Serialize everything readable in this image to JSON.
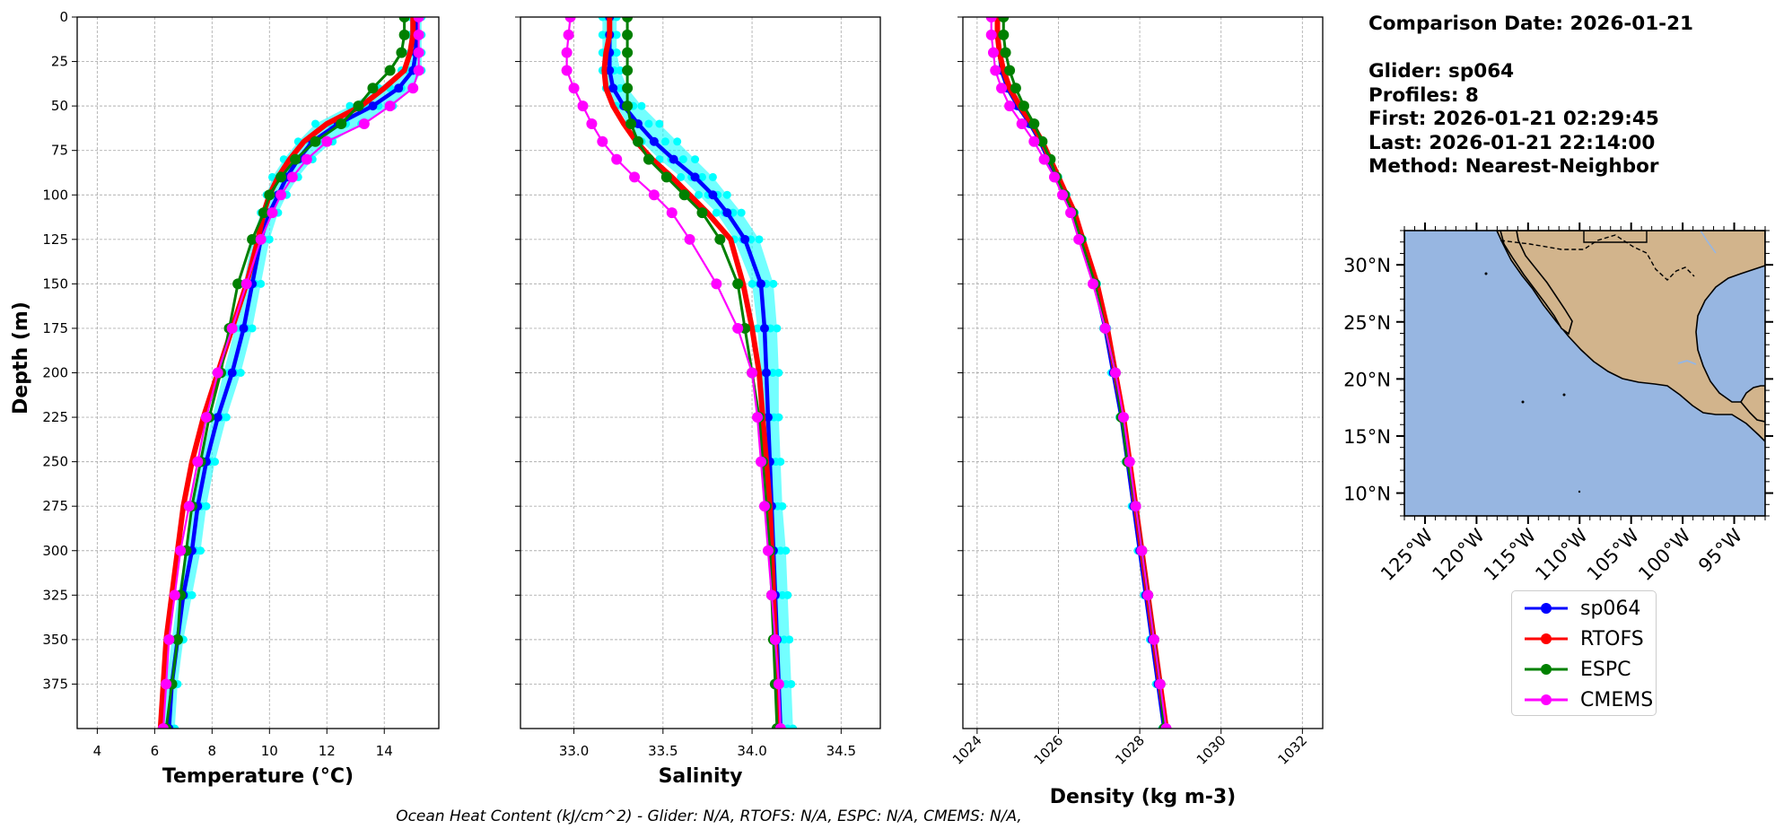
{
  "info": {
    "comparison_date": "Comparison Date: 2026-01-21",
    "glider": "Glider: sp064",
    "profiles": "Profiles: 8",
    "first": "First: 2026-01-21 02:29:45",
    "last": "Last: 2026-01-21 22:14:00",
    "method": "Method: Nearest-Neighbor"
  },
  "footer": "Ocean Heat Content (kJ/cm^2) - Glider: N/A,  RTOFS: N/A,  ESPC: N/A,  CMEMS: N/A,",
  "colors": {
    "glider": "#0000ff",
    "glider_spread": "#00ffff",
    "rtofs": "#ff0000",
    "espc": "#008000",
    "cmems": "#ff00ff",
    "ocean": "#97b6e1",
    "land": "#d2b48c"
  },
  "legend": [
    {
      "label": "sp064",
      "color": "#0000ff"
    },
    {
      "label": "RTOFS",
      "color": "#ff0000"
    },
    {
      "label": "ESPC",
      "color": "#008000"
    },
    {
      "label": "CMEMS",
      "color": "#ff00ff"
    }
  ],
  "chart_data": [
    {
      "type": "line",
      "xlabel": "Temperature (°C)",
      "ylabel": "Depth (m)",
      "xlim": [
        3.3,
        15.9
      ],
      "ylim": [
        400,
        0
      ],
      "xticks": [
        4,
        6,
        8,
        10,
        12,
        14
      ],
      "yticks": [
        0,
        25,
        50,
        75,
        100,
        125,
        150,
        175,
        200,
        225,
        250,
        275,
        300,
        325,
        350,
        375
      ],
      "grid": true,
      "depth": [
        0,
        10,
        20,
        30,
        40,
        50,
        60,
        70,
        80,
        90,
        100,
        110,
        125,
        150,
        175,
        200,
        225,
        250,
        275,
        300,
        325,
        350,
        375,
        400
      ],
      "series": [
        {
          "name": "sp064",
          "values": [
            15.1,
            15.1,
            15.1,
            15.0,
            14.5,
            13.6,
            12.4,
            11.5,
            11.0,
            10.6,
            10.3,
            10.0,
            9.7,
            9.4,
            9.1,
            8.7,
            8.2,
            7.8,
            7.5,
            7.3,
            7.0,
            6.8,
            6.6,
            6.5
          ]
        },
        {
          "name": "RTOFS",
          "values": [
            15.0,
            15.0,
            14.9,
            14.7,
            14.0,
            13.2,
            12.0,
            11.2,
            10.7,
            10.3,
            10.0,
            9.8,
            9.6,
            9.2,
            8.7,
            8.2,
            7.7,
            7.3,
            7.0,
            6.8,
            6.6,
            6.4,
            6.3,
            6.2
          ]
        },
        {
          "name": "ESPC",
          "values": [
            14.7,
            14.7,
            14.6,
            14.2,
            13.6,
            13.1,
            12.5,
            11.6,
            10.9,
            10.4,
            10.0,
            9.8,
            9.4,
            8.9,
            8.6,
            8.3,
            7.9,
            7.6,
            7.3,
            7.1,
            6.9,
            6.8,
            6.6,
            6.4
          ]
        },
        {
          "name": "CMEMS",
          "values": [
            15.2,
            15.2,
            15.2,
            15.2,
            15.0,
            14.2,
            13.3,
            12.0,
            11.3,
            10.8,
            10.4,
            10.1,
            9.7,
            9.2,
            8.7,
            8.2,
            7.8,
            7.5,
            7.2,
            6.9,
            6.7,
            6.5,
            6.4,
            6.3
          ]
        }
      ],
      "glider_spread": {
        "low": [
          14.9,
          14.9,
          14.9,
          14.6,
          13.8,
          12.8,
          11.6,
          11.0,
          10.5,
          10.1,
          9.9,
          9.7,
          9.4,
          9.1,
          8.8,
          8.4,
          8.0,
          7.6,
          7.3,
          7.1,
          6.8,
          6.6,
          6.4,
          6.3
        ],
        "high": [
          15.3,
          15.3,
          15.3,
          15.3,
          15.0,
          14.3,
          13.2,
          12.2,
          11.5,
          11.0,
          10.6,
          10.3,
          10.0,
          9.7,
          9.4,
          9.0,
          8.5,
          8.1,
          7.8,
          7.6,
          7.3,
          7.0,
          6.8,
          6.7
        ]
      }
    },
    {
      "type": "line",
      "xlabel": "Salinity",
      "ylabel": "",
      "xlim": [
        32.7,
        34.72
      ],
      "ylim": [
        400,
        0
      ],
      "xticks": [
        33.0,
        33.5,
        34.0,
        34.5
      ],
      "yticks": [
        0,
        25,
        50,
        75,
        100,
        125,
        150,
        175,
        200,
        225,
        250,
        275,
        300,
        325,
        350,
        375
      ],
      "grid": true,
      "depth": [
        0,
        10,
        20,
        30,
        40,
        50,
        60,
        70,
        80,
        90,
        100,
        110,
        125,
        150,
        175,
        200,
        225,
        250,
        275,
        300,
        325,
        350,
        375,
        400
      ],
      "series": [
        {
          "name": "sp064",
          "values": [
            33.2,
            33.2,
            33.2,
            33.2,
            33.22,
            33.28,
            33.36,
            33.45,
            33.56,
            33.68,
            33.78,
            33.86,
            33.96,
            34.05,
            34.07,
            34.08,
            34.09,
            34.1,
            34.11,
            34.12,
            34.13,
            34.14,
            34.15,
            34.16
          ]
        },
        {
          "name": "RTOFS",
          "values": [
            33.2,
            33.2,
            33.18,
            33.17,
            33.18,
            33.22,
            33.28,
            33.35,
            33.44,
            33.55,
            33.65,
            33.75,
            33.88,
            33.95,
            34.0,
            34.04,
            34.06,
            34.08,
            34.1,
            34.11,
            34.12,
            34.13,
            34.14,
            34.15
          ]
        },
        {
          "name": "ESPC",
          "values": [
            33.3,
            33.3,
            33.3,
            33.3,
            33.3,
            33.3,
            33.32,
            33.36,
            33.42,
            33.52,
            33.62,
            33.72,
            33.82,
            33.92,
            33.96,
            34.0,
            34.04,
            34.06,
            34.08,
            34.1,
            34.11,
            34.12,
            34.13,
            34.14
          ]
        },
        {
          "name": "CMEMS",
          "values": [
            32.98,
            32.97,
            32.96,
            32.96,
            33.0,
            33.05,
            33.1,
            33.16,
            33.24,
            33.34,
            33.45,
            33.55,
            33.65,
            33.8,
            33.92,
            34.0,
            34.03,
            34.05,
            34.07,
            34.09,
            34.11,
            34.13,
            34.15,
            34.16
          ]
        }
      ],
      "glider_spread": {
        "low": [
          33.16,
          33.16,
          33.16,
          33.16,
          33.18,
          33.24,
          33.3,
          33.38,
          33.48,
          33.6,
          33.7,
          33.8,
          33.9,
          34.0,
          34.03,
          34.05,
          34.07,
          34.08,
          34.09,
          34.1,
          34.11,
          34.12,
          34.13,
          34.14
        ],
        "high": [
          33.24,
          33.24,
          33.24,
          33.26,
          33.3,
          33.38,
          33.48,
          33.58,
          33.68,
          33.78,
          33.86,
          33.94,
          34.04,
          34.12,
          34.14,
          34.15,
          34.15,
          34.16,
          34.17,
          34.19,
          34.2,
          34.21,
          34.22,
          34.23
        ]
      }
    },
    {
      "type": "line",
      "xlabel": "Density (kg m-3)",
      "ylabel": "",
      "xlim": [
        1023.65,
        1032.5
      ],
      "ylim": [
        400,
        0
      ],
      "xticks": [
        1024,
        1026,
        1028,
        1030,
        1032
      ],
      "yticks": [
        0,
        25,
        50,
        75,
        100,
        125,
        150,
        175,
        200,
        225,
        250,
        275,
        300,
        325,
        350,
        375
      ],
      "grid": true,
      "depth": [
        0,
        10,
        20,
        30,
        40,
        50,
        60,
        70,
        80,
        90,
        100,
        110,
        125,
        150,
        175,
        200,
        225,
        250,
        275,
        300,
        325,
        350,
        375,
        400
      ],
      "series": [
        {
          "name": "sp064",
          "values": [
            1024.5,
            1024.5,
            1024.55,
            1024.6,
            1024.75,
            1025.0,
            1025.3,
            1025.55,
            1025.75,
            1025.95,
            1026.15,
            1026.35,
            1026.55,
            1026.9,
            1027.15,
            1027.35,
            1027.55,
            1027.7,
            1027.85,
            1028.0,
            1028.15,
            1028.3,
            1028.45,
            1028.6
          ]
        },
        {
          "name": "RTOFS",
          "values": [
            1024.5,
            1024.5,
            1024.55,
            1024.65,
            1024.8,
            1025.05,
            1025.35,
            1025.6,
            1025.8,
            1026.0,
            1026.2,
            1026.4,
            1026.6,
            1026.95,
            1027.2,
            1027.4,
            1027.6,
            1027.75,
            1027.9,
            1028.05,
            1028.2,
            1028.35,
            1028.5,
            1028.65
          ]
        },
        {
          "name": "ESPC",
          "values": [
            1024.65,
            1024.65,
            1024.7,
            1024.8,
            1024.95,
            1025.15,
            1025.4,
            1025.6,
            1025.8,
            1025.95,
            1026.15,
            1026.35,
            1026.55,
            1026.9,
            1027.15,
            1027.4,
            1027.55,
            1027.7,
            1027.9,
            1028.05,
            1028.2,
            1028.35,
            1028.5,
            1028.6
          ]
        },
        {
          "name": "CMEMS",
          "values": [
            1024.35,
            1024.35,
            1024.4,
            1024.45,
            1024.6,
            1024.8,
            1025.1,
            1025.4,
            1025.65,
            1025.9,
            1026.1,
            1026.3,
            1026.5,
            1026.85,
            1027.15,
            1027.4,
            1027.6,
            1027.75,
            1027.9,
            1028.05,
            1028.2,
            1028.35,
            1028.5,
            1028.65
          ]
        }
      ],
      "glider_spread": {
        "low": [
          1024.45,
          1024.45,
          1024.5,
          1024.55,
          1024.7,
          1024.95,
          1025.25,
          1025.5,
          1025.7,
          1025.9,
          1026.1,
          1026.3,
          1026.5,
          1026.85,
          1027.1,
          1027.3,
          1027.5,
          1027.65,
          1027.8,
          1027.95,
          1028.1,
          1028.25,
          1028.4,
          1028.55
        ],
        "high": [
          1024.55,
          1024.55,
          1024.6,
          1024.65,
          1024.8,
          1025.05,
          1025.35,
          1025.6,
          1025.8,
          1026.0,
          1026.2,
          1026.4,
          1026.6,
          1026.95,
          1027.2,
          1027.4,
          1027.6,
          1027.75,
          1027.9,
          1028.05,
          1028.2,
          1028.35,
          1028.5,
          1028.65
        ]
      }
    }
  ],
  "map": {
    "type": "map",
    "lon_range": [
      -127,
      -92
    ],
    "lat_range": [
      8,
      33
    ],
    "xticks": [
      "125°W",
      "120°W",
      "115°W",
      "110°W",
      "105°W",
      "100°W",
      "95°W"
    ],
    "xtick_lons": [
      -125,
      -120,
      -115,
      -110,
      -105,
      -100,
      -95
    ],
    "yticks": [
      "30°N",
      "25°N",
      "20°N",
      "15°N",
      "10°N"
    ],
    "ytick_lats": [
      30,
      25,
      20,
      15,
      10
    ]
  }
}
